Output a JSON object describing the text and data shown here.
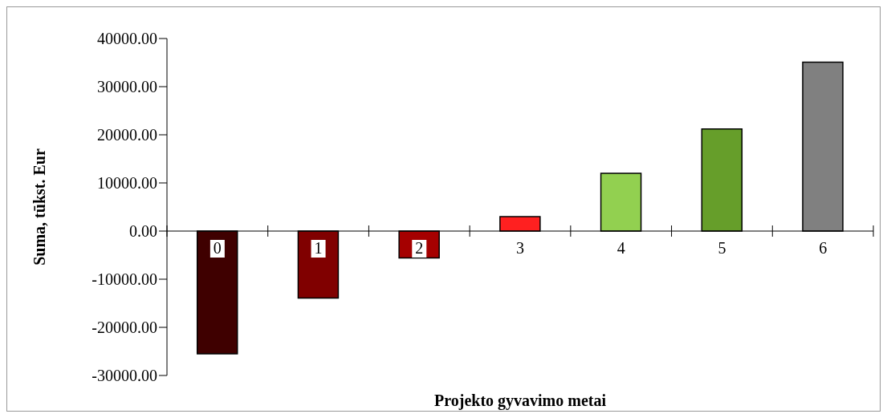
{
  "chart_data": {
    "type": "bar",
    "xlabel": "Projekto gyvavimo metai",
    "ylabel": "Suma,  tūkst. Eur",
    "categories": [
      "0",
      "1",
      "2",
      "3",
      "4",
      "5",
      "6"
    ],
    "values": [
      -25500,
      -13900,
      -5600,
      3000,
      12000,
      21200,
      35100
    ],
    "colors": [
      "#3f0000",
      "#800000",
      "#a50000",
      "#ff2020",
      "#92d050",
      "#669e2a",
      "#808080"
    ],
    "ylim": [
      -30000,
      40000
    ],
    "yticks": [
      {
        "value": -30000,
        "label": "-30000.00"
      },
      {
        "value": -20000,
        "label": "-20000.00"
      },
      {
        "value": -10000,
        "label": "-10000.00"
      },
      {
        "value": 0,
        "label": "0.00"
      },
      {
        "value": 10000,
        "label": "10000.00"
      },
      {
        "value": 20000,
        "label": "20000.00"
      },
      {
        "value": 30000,
        "label": "30000.00"
      },
      {
        "value": 40000,
        "label": "40000.00"
      }
    ],
    "grid": false,
    "legend": false
  }
}
